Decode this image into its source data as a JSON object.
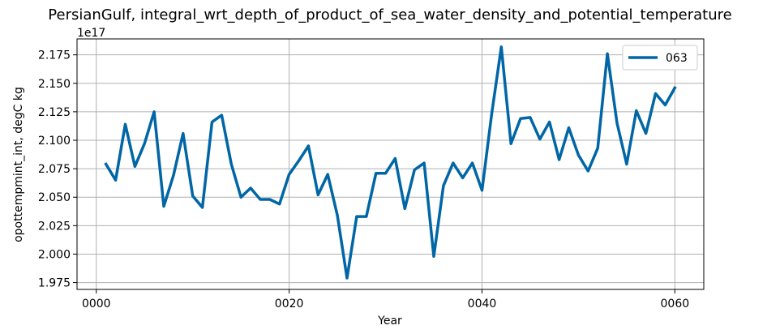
{
  "chart_data": {
    "type": "line",
    "title": "PersianGulf, integral_wrt_depth_of_product_of_sea_water_density_and_potential_temperature",
    "xlabel": "Year",
    "ylabel": "opottempmint_int, degC kg",
    "y_offset_text": "1e17",
    "xlim": [
      -2,
      63
    ],
    "ylim": [
      1.969,
      2.189
    ],
    "x_ticks": [
      0,
      20,
      40,
      60
    ],
    "x_tick_labels": [
      "0000",
      "0020",
      "0040",
      "0060"
    ],
    "y_ticks": [
      1.975,
      2.0,
      2.025,
      2.05,
      2.075,
      2.1,
      2.125,
      2.15,
      2.175
    ],
    "y_tick_labels": [
      "1.975",
      "2.000",
      "2.025",
      "2.050",
      "2.075",
      "2.100",
      "2.125",
      "2.150",
      "2.175"
    ],
    "grid": true,
    "legend_position": "top-right",
    "series": [
      {
        "name": "063",
        "color": "#0066a6",
        "x": [
          1,
          2,
          3,
          4,
          5,
          6,
          7,
          8,
          9,
          10,
          11,
          12,
          13,
          14,
          15,
          16,
          17,
          18,
          19,
          20,
          21,
          22,
          23,
          24,
          25,
          26,
          27,
          28,
          29,
          30,
          31,
          32,
          33,
          34,
          35,
          36,
          37,
          38,
          39,
          40,
          41,
          42,
          43,
          44,
          45,
          46,
          47,
          48,
          49,
          50,
          51,
          52,
          53,
          54,
          55,
          56,
          57,
          58,
          59,
          60
        ],
        "values": [
          2.079,
          2.065,
          2.114,
          2.077,
          2.097,
          2.125,
          2.042,
          2.069,
          2.106,
          2.051,
          2.041,
          2.116,
          2.122,
          2.079,
          2.05,
          2.058,
          2.048,
          2.048,
          2.044,
          2.07,
          2.082,
          2.095,
          2.052,
          2.07,
          2.034,
          1.979,
          2.033,
          2.033,
          2.071,
          2.071,
          2.084,
          2.04,
          2.074,
          2.08,
          1.998,
          2.06,
          2.08,
          2.067,
          2.08,
          2.056,
          2.123,
          2.182,
          2.097,
          2.119,
          2.12,
          2.101,
          2.116,
          2.083,
          2.111,
          2.087,
          2.073,
          2.093,
          2.176,
          2.115,
          2.079,
          2.126,
          2.106,
          2.141,
          2.131,
          2.146
        ]
      }
    ]
  }
}
